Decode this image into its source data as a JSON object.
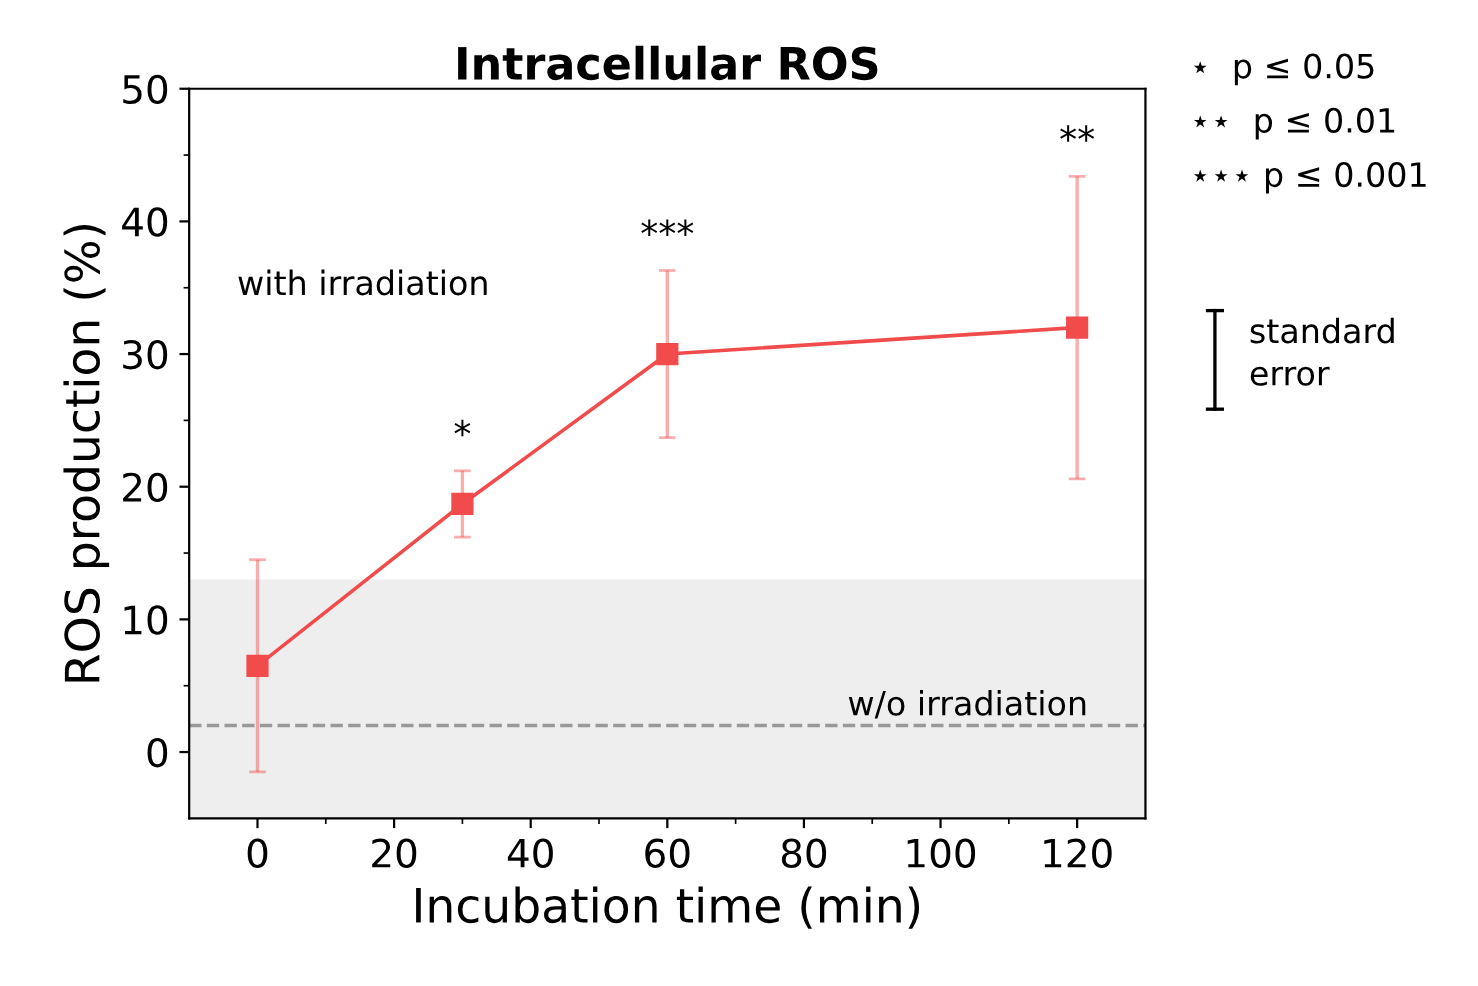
{
  "chart_data": {
    "type": "line",
    "title": "Intracellular ROS",
    "xlabel": "Incubation time (min)",
    "ylabel": "ROS production (%)",
    "x": [
      0,
      30,
      60,
      120
    ],
    "series": [
      {
        "color": "#f24b4b",
        "values": [
          6.5,
          18.7,
          30,
          32
        ],
        "errors": [
          8,
          2.5,
          6.3,
          11.4
        ]
      }
    ],
    "marker": "square",
    "line_style": "solid",
    "grid": false,
    "xlim": [
      -10,
      130
    ],
    "xticks": [
      0,
      20,
      40,
      60,
      80,
      100,
      120
    ],
    "ylim": [
      -5,
      50
    ],
    "yticks": [
      0,
      10,
      20,
      30,
      40,
      50
    ],
    "ref_lines": [
      {
        "axis": "y",
        "value": 2,
        "color": "#999999",
        "line_style": "dashed"
      }
    ],
    "bands": [
      {
        "axis": "y",
        "from": -5,
        "to": 13,
        "label": "w/o irradiation",
        "color": "#eeeeee"
      }
    ],
    "annotations": [
      "with irradiation",
      "*",
      "***",
      "**",
      "⋆  p ≤ 0.05",
      "⋆⋆  p ≤ 0.01",
      "⋆⋆⋆ p ≤ 0.001",
      "standard\nerror"
    ]
  }
}
